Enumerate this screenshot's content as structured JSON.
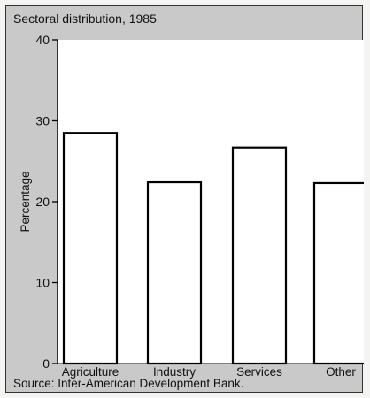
{
  "chart_data": {
    "type": "bar",
    "title": "Sectoral distribution, 1985",
    "categories": [
      "Agriculture",
      "Industry",
      "Services",
      "Other"
    ],
    "values": [
      28.5,
      22.4,
      26.7,
      22.3
    ],
    "xlabel": "",
    "ylabel": "Percentage",
    "ylim": [
      0,
      40
    ],
    "yticks": [
      0,
      10,
      20,
      30,
      40
    ],
    "grid": false,
    "source": "Source: Inter-American Development Bank.",
    "colors": {
      "frame_background": "#c9c9c9",
      "plot_background": "#ffffff",
      "bar_fill": "#ffffff",
      "bar_stroke": "#000000"
    }
  }
}
